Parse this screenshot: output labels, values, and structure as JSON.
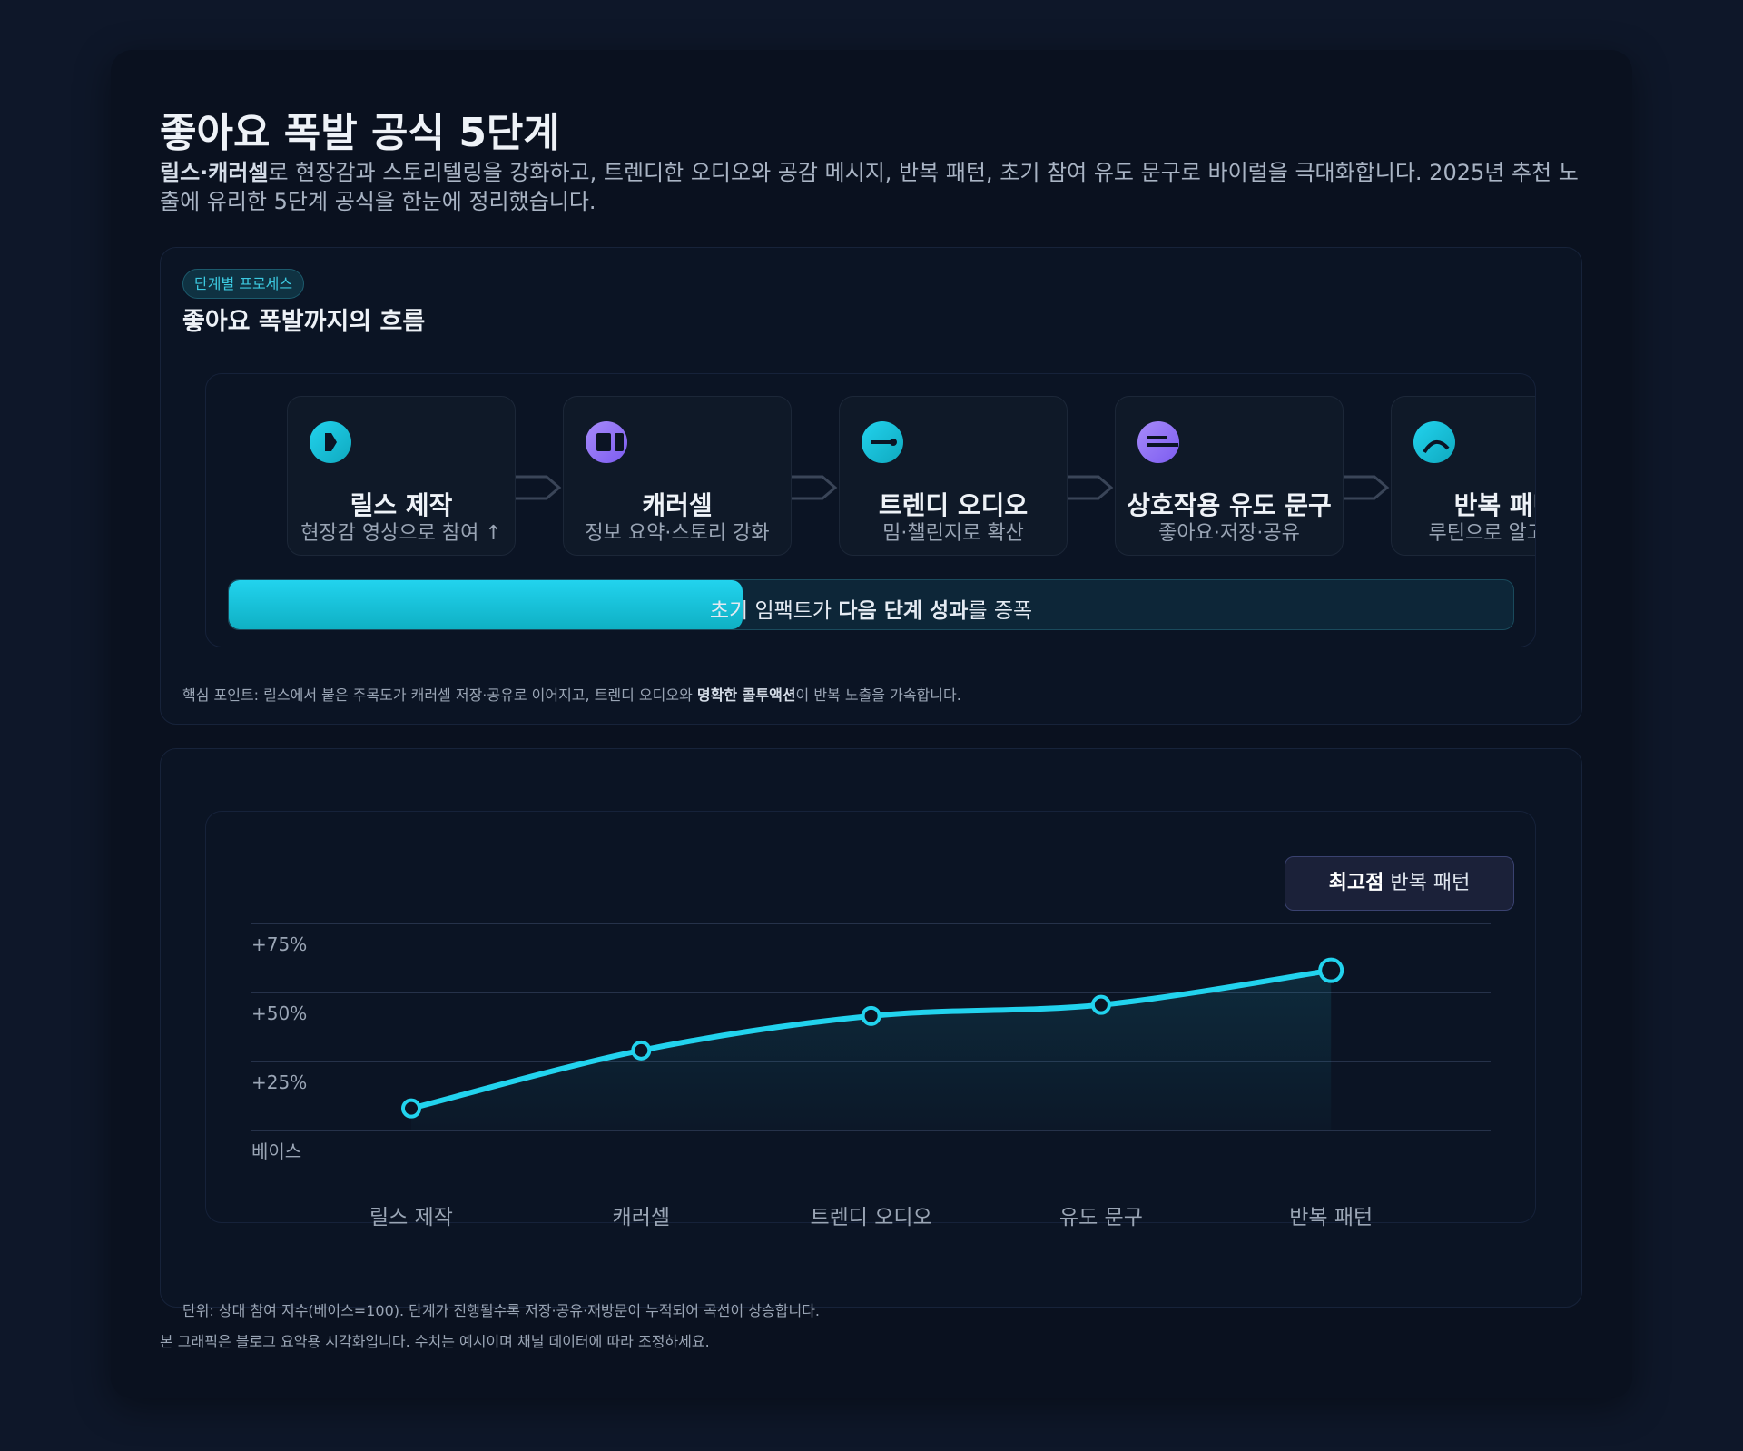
{
  "header": {
    "title": "좋아요 폭발 공식 5단계",
    "desc_bold": "릴스·캐러셀",
    "desc_rest": "로 현장감과 스토리텔링을 강화하고, 트렌디한 오디오와 공감 메시지, 반복 패턴, 초기 참여 유도 문구로 바이럴을 극대화합니다. 2025년 추천 노출에 유리한 5단계 공식을 한눈에 정리했습니다."
  },
  "process": {
    "badge": "단계별 프로세스",
    "title": "좋아요 폭발까지의 흐름",
    "steps": [
      {
        "title": "릴스 제작",
        "sub": "현장감 영상으로 참여 ↑",
        "icon": "play-icon",
        "color": "#22d3ee"
      },
      {
        "title": "캐러셀",
        "sub": "정보 요약·스토리 강화",
        "icon": "carousel-icon",
        "color": "#a78bfa"
      },
      {
        "title": "트렌디 오디오",
        "sub": "밈·챌린지로 확산",
        "icon": "audio-icon",
        "color": "#22d3ee"
      },
      {
        "title": "상호작용 유도 문구",
        "sub": "좋아요·저장·공유",
        "icon": "text-lines-icon",
        "color": "#a78bfa"
      },
      {
        "title": "반복 패턴",
        "sub": "루틴으로 알고리즘",
        "icon": "loop-icon",
        "color": "#22d3ee"
      }
    ],
    "progress": {
      "value": 0.4,
      "text_pre": "초기 임팩트가 ",
      "text_bold": "다음 단계 성과",
      "text_post": "를 증폭"
    },
    "key_pre": "핵심 포인트: 릴스에서 붙은 주목도가 캐러셀 저장·공유로 이어지고, 트렌디 오디오와 ",
    "key_bold": "명확한 콜투액션",
    "key_post": "이 반복 노출을 가속합니다."
  },
  "chart_data": {
    "type": "line",
    "categories": [
      "릴스 제작",
      "캐러셀",
      "트렌디 오디오",
      "유도 문구",
      "반복 패턴"
    ],
    "values": [
      8,
      29,
      41.5,
      45.5,
      58
    ],
    "yticks": [
      {
        "v": 0,
        "label": "베이스"
      },
      {
        "v": 25,
        "label": "+25%"
      },
      {
        "v": 50,
        "label": "+50%"
      },
      {
        "v": 75,
        "label": "+75%"
      }
    ],
    "ylim": [
      0,
      75
    ],
    "grid": true,
    "annotation_bold": "최고점",
    "annotation": "반복 패턴",
    "color": "#22d3ee"
  },
  "footer": {
    "unit_note": "단위: 상대 참여 지수(베이스=100). 단계가 진행될수록 저장·공유·재방문이 누적되어 곡선이 상승합니다.",
    "disclaimer": "본 그래픽은 블로그 요약용 시각화입니다. 수치는 예시이며 채널 데이터에 따라 조정하세요."
  }
}
